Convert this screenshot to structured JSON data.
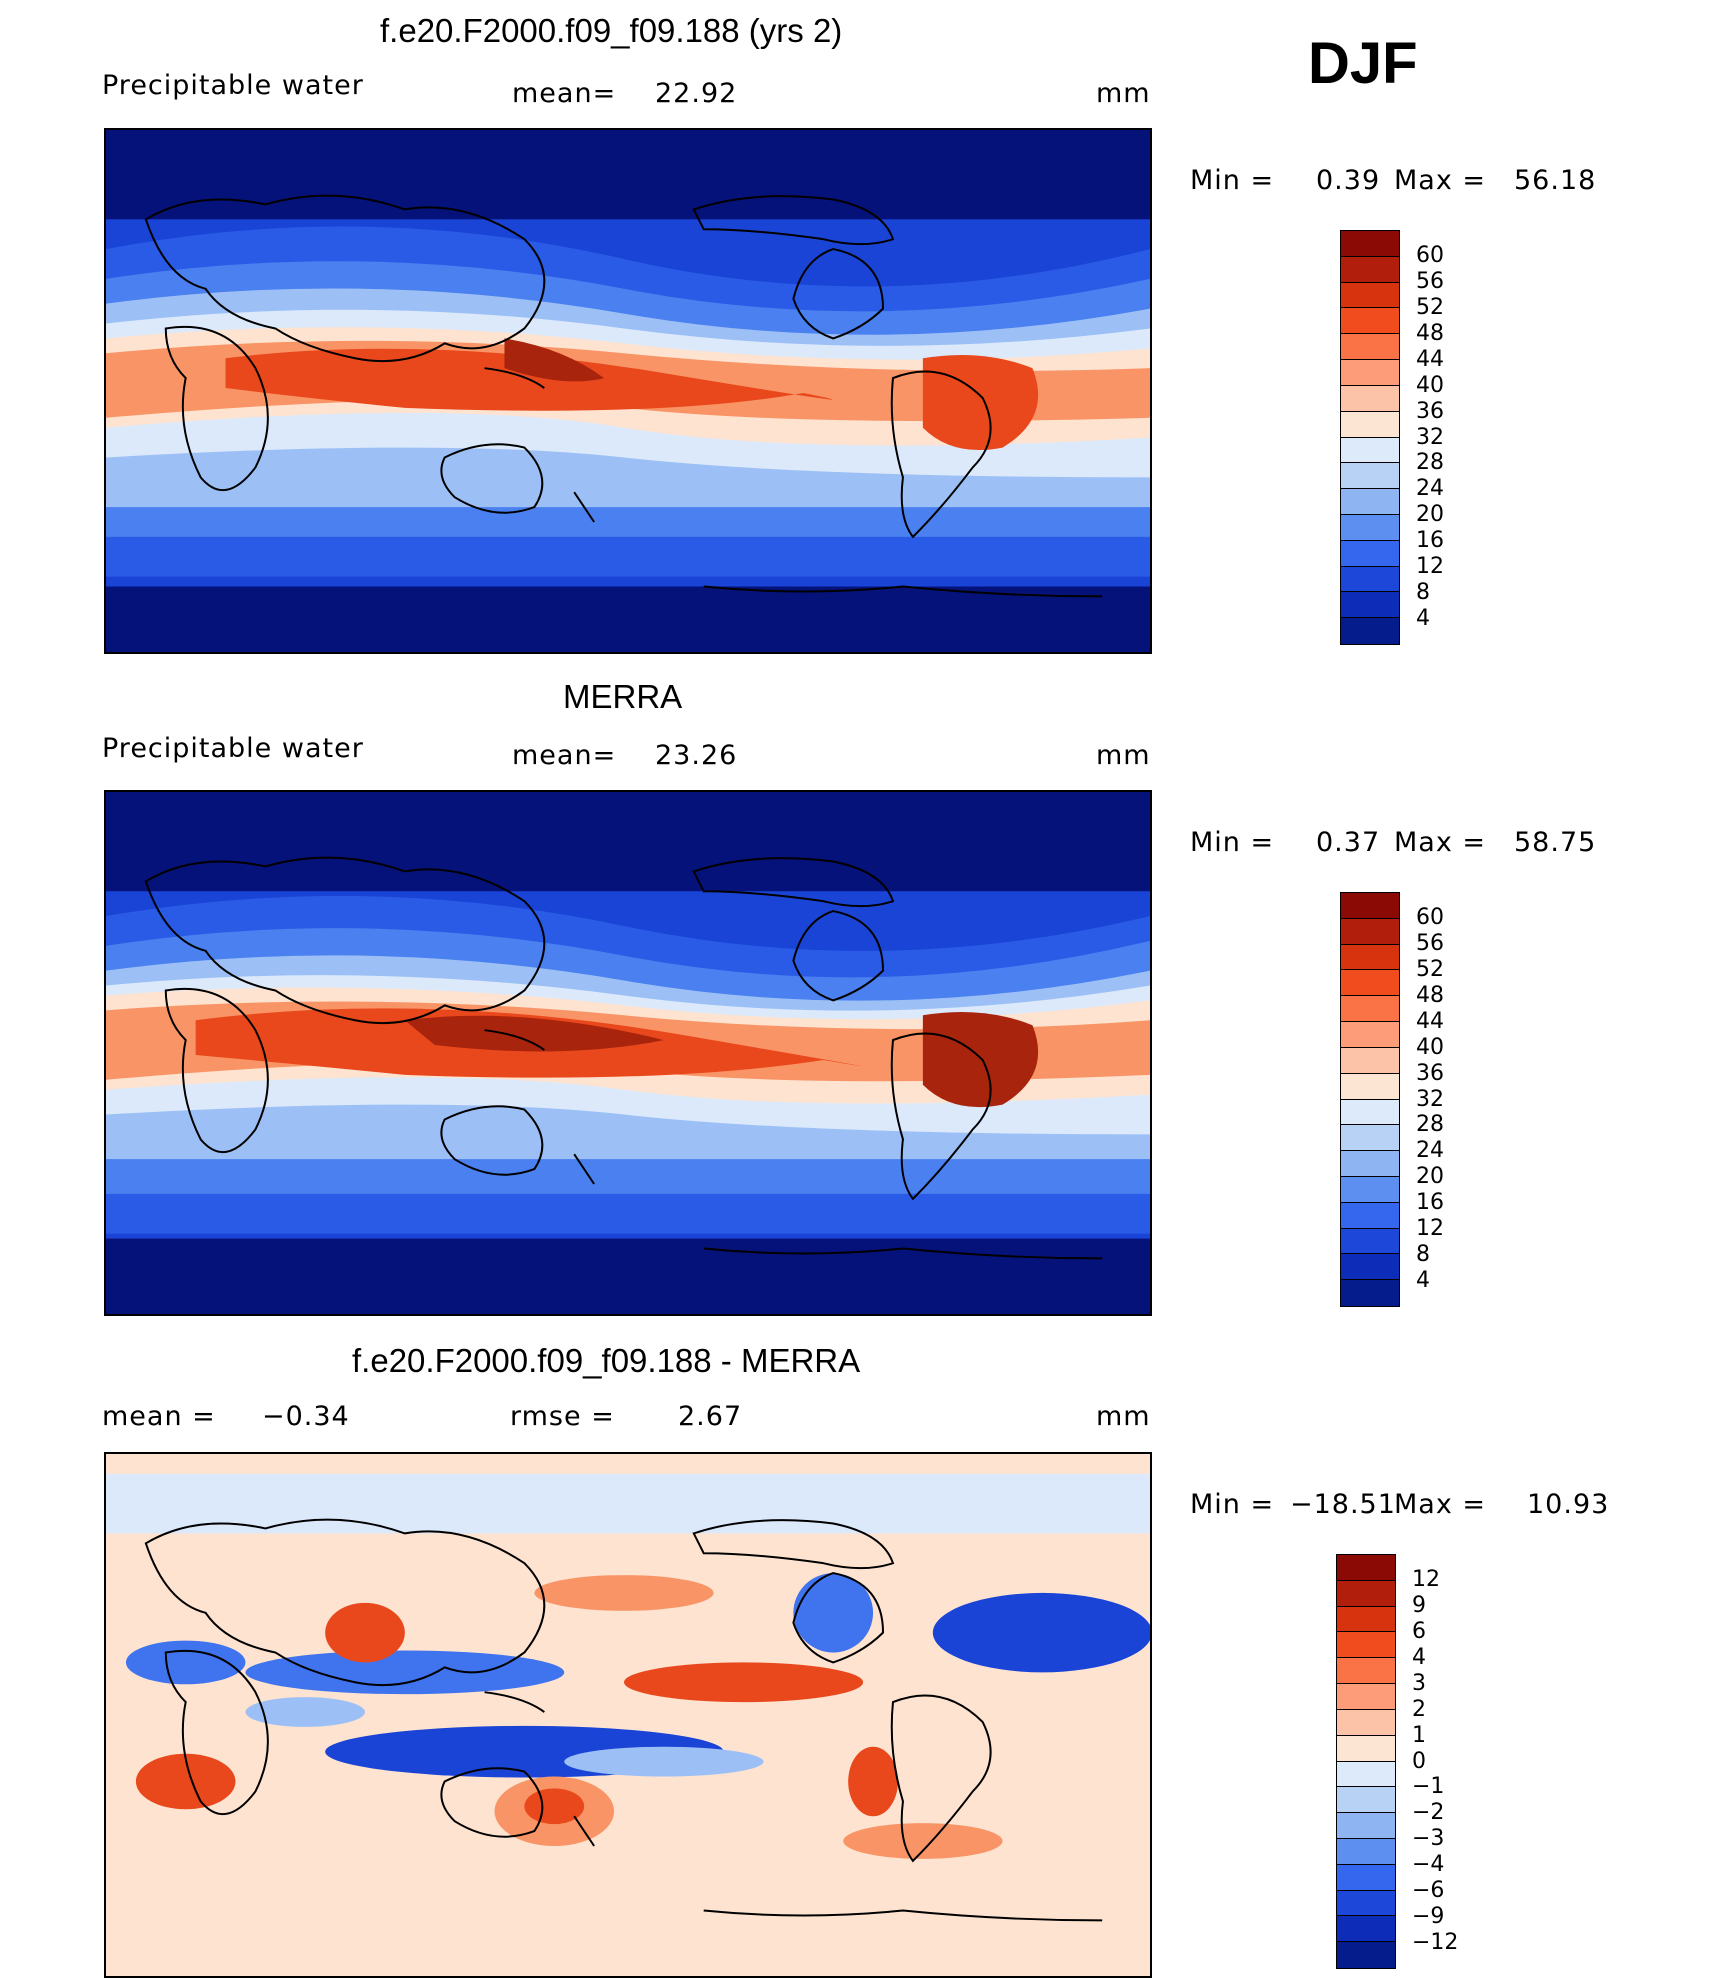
{
  "season": "DJF",
  "panels": [
    {
      "id": "model",
      "title": "f.e20.F2000.f09_f09.188 (yrs 2)",
      "left_text": "Precipitable water",
      "mid_label": "mean=",
      "mid_value": "22.92",
      "units": "mm",
      "min_label": "Min =",
      "min_value": "0.39",
      "max_label": "Max =",
      "max_value": "56.18",
      "colorbar_labels": [
        "60",
        "56",
        "52",
        "48",
        "44",
        "40",
        "36",
        "32",
        "28",
        "24",
        "20",
        "16",
        "12",
        "8",
        "4"
      ],
      "colorbar_colors": [
        "#8b0a05",
        "#b21e0c",
        "#d8330f",
        "#f04c1d",
        "#fa7346",
        "#fc9c78",
        "#fdc3a8",
        "#fde5d4",
        "#dceaf9",
        "#b7d2f5",
        "#8eb5f2",
        "#5d8ff0",
        "#3466ee",
        "#1d47d8",
        "#0d2db8",
        "#051d8c"
      ],
      "ylabel": "",
      "xlabel": ""
    },
    {
      "id": "obs",
      "title": "MERRA",
      "left_text": "Precipitable water",
      "mid_label": "mean=",
      "mid_value": "23.26",
      "units": "mm",
      "min_label": "Min =",
      "min_value": "0.37",
      "max_label": "Max =",
      "max_value": "58.75",
      "colorbar_labels": [
        "60",
        "56",
        "52",
        "48",
        "44",
        "40",
        "36",
        "32",
        "28",
        "24",
        "20",
        "16",
        "12",
        "8",
        "4"
      ],
      "colorbar_colors": [
        "#8b0a05",
        "#b21e0c",
        "#d8330f",
        "#f04c1d",
        "#fa7346",
        "#fc9c78",
        "#fdc3a8",
        "#fde5d4",
        "#dceaf9",
        "#b7d2f5",
        "#8eb5f2",
        "#5d8ff0",
        "#3466ee",
        "#1d47d8",
        "#0d2db8",
        "#051d8c"
      ]
    },
    {
      "id": "diff",
      "title": "f.e20.F2000.f09_f09.188 - MERRA",
      "left_label": "mean =",
      "left_value": "−0.34",
      "mid_label": "rmse =",
      "mid_value": "2.67",
      "units": "mm",
      "min_label": "Min =",
      "min_value": "−18.51",
      "max_label": "Max =",
      "max_value": "10.93",
      "colorbar_labels": [
        "12",
        "9",
        "6",
        "4",
        "3",
        "2",
        "1",
        "0",
        "−1",
        "−2",
        "−3",
        "−4",
        "−6",
        "−9",
        "−12"
      ],
      "colorbar_colors": [
        "#8b0a05",
        "#b21e0c",
        "#d8330f",
        "#f04c1d",
        "#fa7346",
        "#fc9c78",
        "#fdc3a8",
        "#fde5d4",
        "#dceaf9",
        "#b7d2f5",
        "#8eb5f2",
        "#5d8ff0",
        "#3466ee",
        "#1d47d8",
        "#0d2db8",
        "#051d8c"
      ]
    }
  ],
  "palette": {
    "deep_blue": "#05127a",
    "blue": "#1a44d6",
    "mid_blue": "#3f74ee",
    "light_blue": "#9cc0f5",
    "pale_blue": "#dbe9fb",
    "pale_orange": "#fde3d0",
    "orange": "#f99466",
    "red_orange": "#e9481c",
    "dark_red": "#a8240c"
  }
}
